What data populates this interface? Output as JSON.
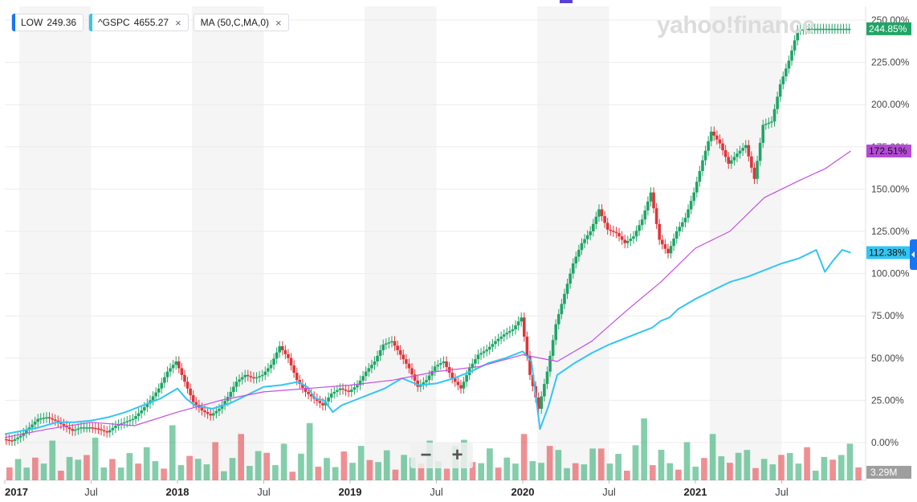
{
  "legend": [
    {
      "ticker": "LOW",
      "value": "249.36",
      "color": "#1976f2",
      "closable": false
    },
    {
      "ticker": "^GSPC",
      "value": "4655.27",
      "color": "#33c5f3",
      "closable": true
    },
    {
      "ticker": "MA (50,C,MA,0)",
      "value": "",
      "color": "#33c5f3",
      "closable": true
    }
  ],
  "close_icon": "×",
  "watermark": "yahoo!finance",
  "zoom": {
    "minus": "−",
    "plus": "+"
  },
  "chart_data": {
    "type": "line",
    "y_unit": "%",
    "ylim": [
      -7,
      255
    ],
    "y_ticks": [
      "0.00%",
      "25.00%",
      "50.00%",
      "75.00%",
      "100.00%",
      "125.00%",
      "150.00%",
      "175.00%",
      "200.00%",
      "225.00%",
      "250.00%"
    ],
    "y_tick_values": [
      0,
      25,
      50,
      75,
      100,
      125,
      150,
      175,
      200,
      225,
      250
    ],
    "x_ticks": [
      {
        "label": "2017",
        "t": 0.0,
        "bold": true
      },
      {
        "label": "Jul",
        "t": 0.5,
        "bold": false
      },
      {
        "label": "2018",
        "t": 1.0,
        "bold": true
      },
      {
        "label": "Jul",
        "t": 1.5,
        "bold": false
      },
      {
        "label": "2019",
        "t": 2.0,
        "bold": true
      },
      {
        "label": "Jul",
        "t": 2.5,
        "bold": false
      },
      {
        "label": "2020",
        "t": 3.0,
        "bold": true
      },
      {
        "label": "Jul",
        "t": 3.5,
        "bold": false
      },
      {
        "label": "2021",
        "t": 4.0,
        "bold": true
      },
      {
        "label": "Jul",
        "t": 4.5,
        "bold": false
      }
    ],
    "x_range_years": [
      2017.0,
      2021.91
    ],
    "series": [
      {
        "name": "LOW",
        "style": "candlestick",
        "color_up": "#1fa566",
        "color_down": "#e0343a",
        "last_label": "244.85%",
        "label_color": "#1fa566",
        "x": [
          0.0,
          0.05,
          0.1,
          0.15,
          0.2,
          0.25,
          0.3,
          0.35,
          0.4,
          0.45,
          0.5,
          0.55,
          0.6,
          0.65,
          0.7,
          0.75,
          0.8,
          0.85,
          0.9,
          0.95,
          1.0,
          1.05,
          1.1,
          1.15,
          1.2,
          1.25,
          1.3,
          1.35,
          1.4,
          1.45,
          1.5,
          1.55,
          1.6,
          1.65,
          1.7,
          1.75,
          1.8,
          1.85,
          1.9,
          1.95,
          2.0,
          2.05,
          2.1,
          2.15,
          2.2,
          2.25,
          2.3,
          2.35,
          2.4,
          2.45,
          2.5,
          2.55,
          2.6,
          2.65,
          2.7,
          2.75,
          2.8,
          2.85,
          2.9,
          2.95,
          3.0,
          3.05,
          3.1,
          3.15,
          3.2,
          3.25,
          3.3,
          3.35,
          3.4,
          3.45,
          3.5,
          3.55,
          3.6,
          3.65,
          3.7,
          3.75,
          3.8,
          3.85,
          3.9,
          3.95,
          4.0,
          4.05,
          4.1,
          4.15,
          4.2,
          4.25,
          4.3,
          4.35,
          4.4,
          4.45,
          4.5,
          4.55,
          4.6,
          4.65,
          4.7,
          4.75,
          4.8,
          4.85,
          4.9
        ],
        "values": [
          2,
          1,
          4,
          9,
          14,
          15,
          13,
          10,
          7,
          9,
          9,
          8,
          6,
          10,
          12,
          14,
          19,
          25,
          32,
          42,
          48,
          36,
          24,
          19,
          16,
          20,
          27,
          36,
          40,
          38,
          40,
          46,
          57,
          50,
          37,
          30,
          26,
          22,
          29,
          32,
          30,
          34,
          42,
          48,
          58,
          60,
          52,
          44,
          33,
          37,
          45,
          48,
          38,
          32,
          44,
          52,
          55,
          60,
          64,
          67,
          74,
          40,
          20,
          42,
          70,
          88,
          106,
          118,
          125,
          138,
          126,
          124,
          118,
          122,
          132,
          148,
          120,
          112,
          125,
          133,
          148,
          167,
          184,
          177,
          165,
          171,
          176,
          156,
          188,
          190,
          212,
          226,
          244,
          244.85,
          244.85,
          244.85,
          244.85,
          244.85,
          244.85
        ]
      },
      {
        "name": "^GSPC",
        "style": "line",
        "color": "#33c5f3",
        "last_label": "112.38%",
        "label_color": "#33c5f3",
        "x": [
          0.0,
          0.1,
          0.2,
          0.3,
          0.4,
          0.5,
          0.6,
          0.7,
          0.8,
          0.9,
          1.0,
          1.05,
          1.1,
          1.2,
          1.3,
          1.4,
          1.5,
          1.6,
          1.7,
          1.75,
          1.8,
          1.85,
          1.9,
          1.95,
          2.0,
          2.1,
          2.2,
          2.3,
          2.4,
          2.5,
          2.6,
          2.7,
          2.8,
          2.9,
          3.0,
          3.05,
          3.1,
          3.15,
          3.2,
          3.3,
          3.4,
          3.5,
          3.6,
          3.7,
          3.75,
          3.8,
          3.85,
          3.9,
          4.0,
          4.1,
          4.2,
          4.3,
          4.4,
          4.5,
          4.6,
          4.7,
          4.75,
          4.8,
          4.85,
          4.9
        ],
        "values": [
          5,
          7,
          9,
          12,
          12,
          13,
          15,
          18,
          22,
          26,
          32,
          26,
          22,
          20,
          23,
          28,
          33,
          34,
          36,
          33,
          26,
          25,
          18,
          22,
          24,
          28,
          32,
          38,
          34,
          35,
          38,
          42,
          47,
          50,
          54,
          48,
          8,
          22,
          40,
          47,
          53,
          58,
          62,
          66,
          68,
          72,
          74,
          79,
          85,
          90,
          95,
          98,
          102,
          106,
          109,
          114,
          101,
          108,
          114,
          112.38
        ]
      },
      {
        "name": "MA (50,C,MA,0)",
        "style": "line",
        "color": "#c44fe0",
        "last_label": "172.51%",
        "label_color": "#b44ad6",
        "x": [
          0.0,
          0.25,
          0.5,
          0.75,
          1.0,
          1.25,
          1.5,
          1.75,
          2.0,
          2.25,
          2.5,
          2.75,
          3.0,
          3.2,
          3.4,
          3.6,
          3.8,
          4.0,
          4.2,
          4.4,
          4.6,
          4.75,
          4.9
        ],
        "values": [
          3,
          8,
          12,
          10,
          18,
          25,
          30,
          32,
          34,
          37,
          42,
          45,
          52,
          48,
          60,
          78,
          95,
          115,
          125,
          145,
          155,
          162,
          172.51
        ]
      }
    ],
    "volume": {
      "last_label": "3.29M",
      "values": [
        3,
        4,
        2,
        5,
        3,
        6,
        2,
        4,
        3,
        5,
        7,
        3,
        4,
        2,
        6,
        3,
        5,
        4,
        2,
        8,
        3,
        4,
        5,
        3,
        6,
        2,
        4,
        7,
        3,
        5,
        4,
        3,
        6,
        2,
        5,
        9,
        3,
        4,
        2,
        6,
        3,
        5,
        4,
        3,
        7,
        2,
        4,
        5,
        3,
        6,
        4,
        2,
        5,
        8,
        3,
        4,
        6,
        2,
        5,
        3,
        7,
        4,
        3,
        5,
        6,
        2,
        4,
        3,
        5,
        7,
        3,
        4,
        2,
        6,
        9,
        3,
        5,
        4,
        2,
        6,
        3,
        4,
        7,
        5,
        3,
        4,
        6,
        2,
        5,
        3,
        4,
        6,
        3,
        5,
        2,
        4,
        3,
        5,
        6,
        3
      ]
    }
  }
}
